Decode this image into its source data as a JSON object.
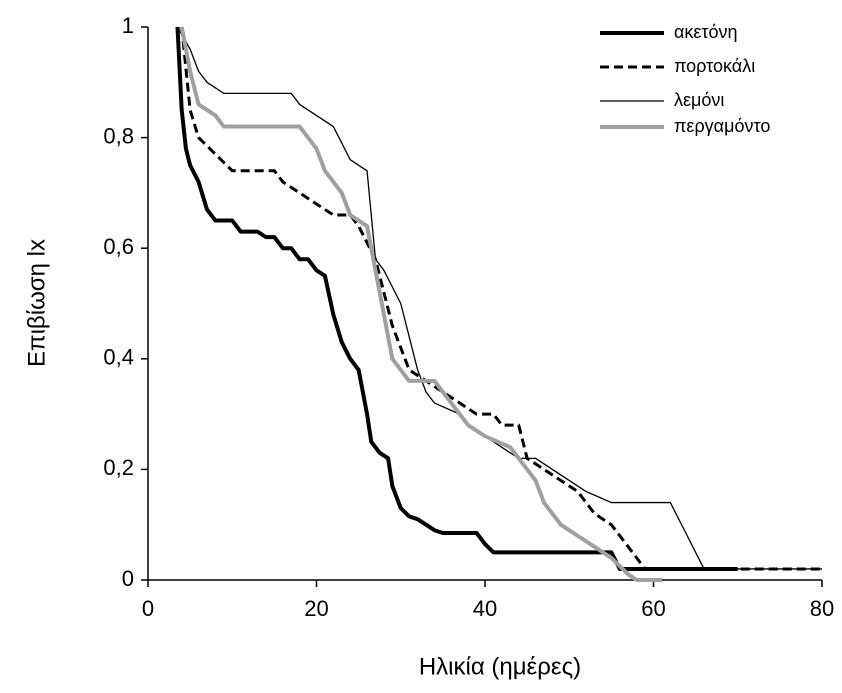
{
  "chart_data": {
    "type": "line",
    "xlabel": "Ηλικία (ημέρες)",
    "ylabel": "Επιβίωση lx",
    "xlim": [
      0,
      80
    ],
    "xticks": [
      0,
      20,
      40,
      60,
      80
    ],
    "ylim": [
      0,
      1
    ],
    "yticks": [
      0,
      {
        "value": 0.2,
        "label": "0,2"
      },
      {
        "value": 0.4,
        "label": "0,4"
      },
      {
        "value": 0.6,
        "label": "0,6"
      },
      {
        "value": 0.8,
        "label": "0,8"
      },
      1
    ],
    "legend": "upper right",
    "series": [
      {
        "name": "ακετόνη",
        "color": "#000000",
        "width": 4,
        "dash": false,
        "x": [
          3.5,
          4,
          4.5,
          5,
          6,
          7,
          8,
          10,
          11,
          13,
          14,
          15,
          16,
          17,
          18,
          19,
          20,
          21,
          22,
          23,
          24,
          25,
          26,
          26.5,
          27.5,
          28.5,
          29,
          30,
          31,
          32,
          33,
          34,
          35,
          39,
          40,
          41,
          55,
          56,
          70
        ],
        "values": [
          1,
          0.85,
          0.78,
          0.75,
          0.72,
          0.67,
          0.65,
          0.65,
          0.63,
          0.63,
          0.62,
          0.62,
          0.6,
          0.6,
          0.58,
          0.58,
          0.56,
          0.55,
          0.48,
          0.43,
          0.4,
          0.38,
          0.3,
          0.25,
          0.23,
          0.22,
          0.17,
          0.13,
          0.115,
          0.11,
          0.1,
          0.09,
          0.085,
          0.085,
          0.065,
          0.05,
          0.05,
          0.02,
          0.02
        ]
      },
      {
        "name": "πορτοκάλι",
        "color": "#000000",
        "width": 3,
        "dash": true,
        "x": [
          4,
          5,
          6,
          8,
          10,
          15,
          16,
          18,
          20,
          22,
          24,
          25,
          27,
          28,
          29,
          30,
          31,
          33,
          35,
          37,
          39,
          41,
          42,
          44,
          45,
          47,
          49,
          51,
          53,
          55,
          56,
          57,
          58,
          59,
          80
        ],
        "values": [
          1,
          0.85,
          0.8,
          0.77,
          0.74,
          0.74,
          0.72,
          0.7,
          0.68,
          0.66,
          0.66,
          0.64,
          0.58,
          0.52,
          0.46,
          0.42,
          0.38,
          0.36,
          0.34,
          0.32,
          0.3,
          0.3,
          0.28,
          0.28,
          0.22,
          0.2,
          0.18,
          0.16,
          0.12,
          0.1,
          0.08,
          0.06,
          0.04,
          0.02,
          0.02
        ]
      },
      {
        "name": "λεμόνι",
        "color": "#000000",
        "width": 1.3,
        "dash": false,
        "x": [
          3.5,
          5,
          6,
          7,
          9,
          17,
          18,
          22,
          24,
          26,
          27,
          28,
          30,
          31,
          32,
          33,
          34,
          37,
          38,
          40,
          42,
          44,
          46,
          48,
          50,
          52,
          55,
          62,
          64,
          66,
          80
        ],
        "values": [
          1,
          0.96,
          0.92,
          0.9,
          0.88,
          0.88,
          0.86,
          0.82,
          0.76,
          0.74,
          0.58,
          0.56,
          0.5,
          0.44,
          0.38,
          0.34,
          0.32,
          0.3,
          0.28,
          0.26,
          0.24,
          0.22,
          0.22,
          0.2,
          0.18,
          0.16,
          0.14,
          0.14,
          0.08,
          0.02,
          0.02
        ]
      },
      {
        "name": "περγαμόντο",
        "color": "#a0a0a0",
        "width": 4,
        "dash": false,
        "x": [
          4,
          5,
          6,
          8,
          9,
          18,
          20,
          21,
          23,
          24,
          26,
          27,
          28,
          29,
          31,
          34,
          36,
          38,
          40,
          43,
          44,
          46,
          47,
          49,
          51,
          53,
          55,
          57,
          58,
          61
        ],
        "values": [
          1,
          0.92,
          0.86,
          0.84,
          0.82,
          0.82,
          0.78,
          0.74,
          0.7,
          0.66,
          0.64,
          0.56,
          0.48,
          0.4,
          0.36,
          0.36,
          0.32,
          0.28,
          0.26,
          0.24,
          0.22,
          0.18,
          0.14,
          0.1,
          0.08,
          0.06,
          0.04,
          0.01,
          0,
          0
        ]
      }
    ]
  }
}
